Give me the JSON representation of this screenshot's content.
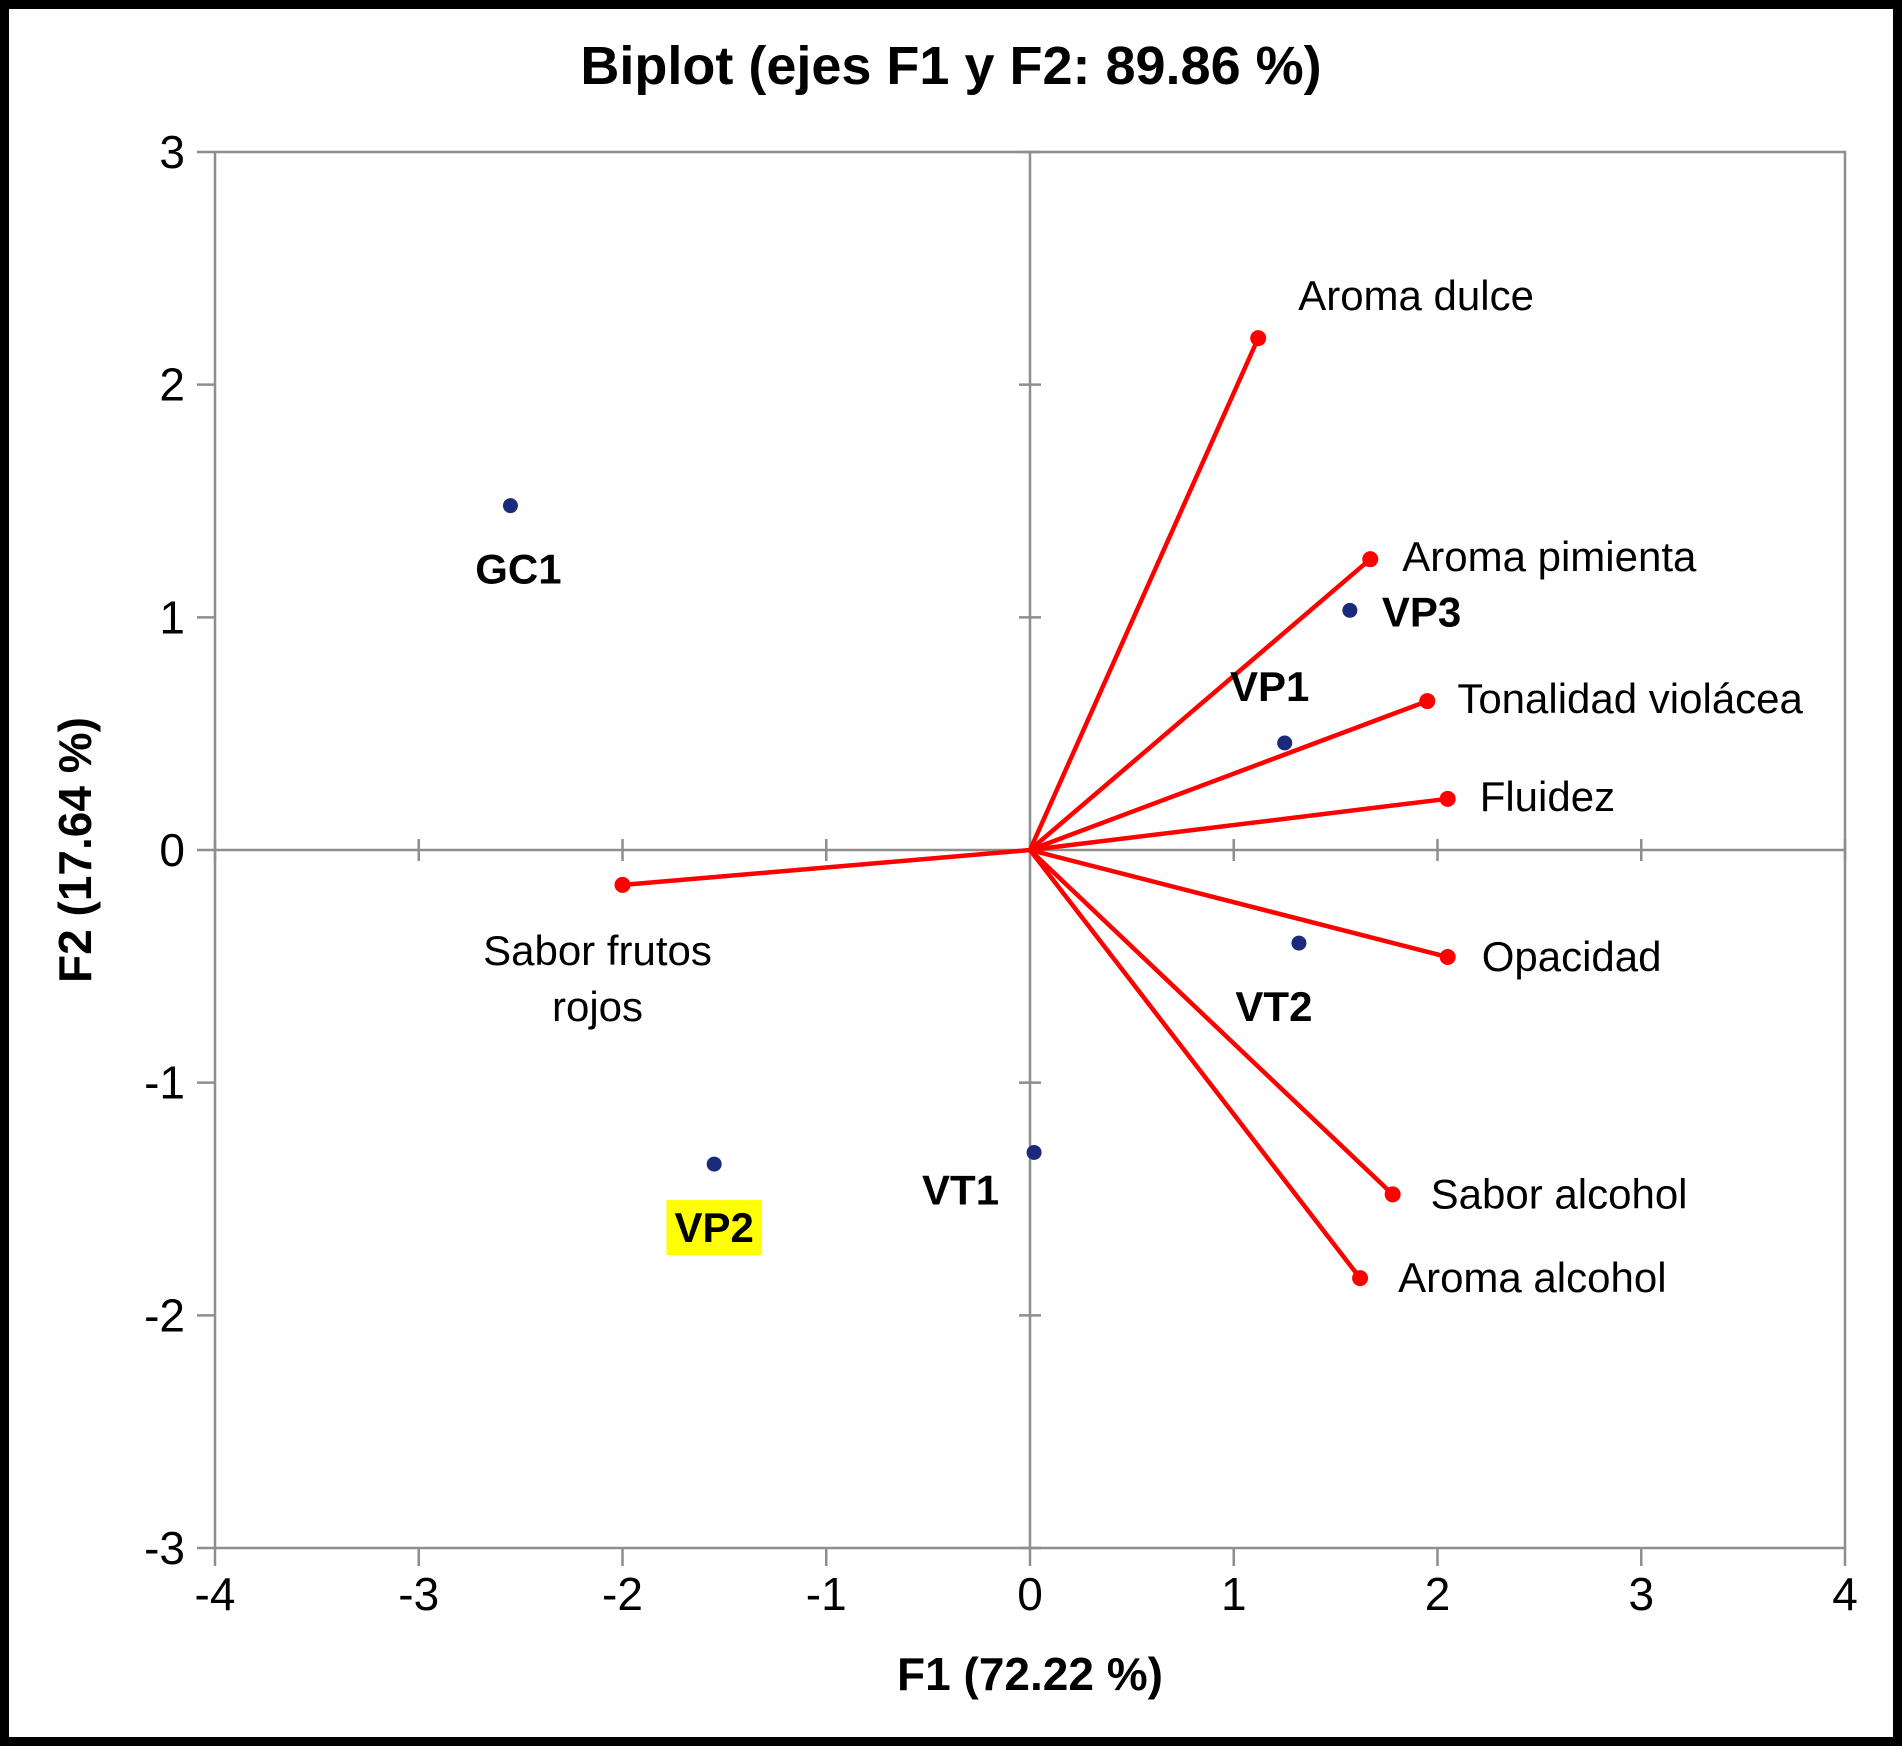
{
  "chart_data": {
    "type": "scatter",
    "title": "Biplot (ejes F1 y F2: 89.86 %)",
    "xlabel": "F1 (72.22 %)",
    "ylabel": "F2 (17.64 %)",
    "xlim": [
      -4,
      4
    ],
    "ylim": [
      -3,
      3
    ],
    "xticks": [
      -4,
      -3,
      -2,
      -1,
      0,
      1,
      2,
      3,
      4
    ],
    "yticks": [
      -3,
      -2,
      -1,
      0,
      1,
      2,
      3
    ],
    "grid": false,
    "legend": false,
    "colors": {
      "observation_point": "#1b2a7b",
      "vector": "#fe0000",
      "highlight": "#ffff00",
      "axis": "#8e8e8e",
      "text": "#000000"
    },
    "observations": [
      {
        "label": "GC1",
        "x": -2.55,
        "y": 1.48,
        "label_dx": 8,
        "label_dy": 78,
        "anchor": "middle",
        "highlight": false
      },
      {
        "label": "VP3",
        "x": 1.57,
        "y": 1.03,
        "label_dx": 32,
        "label_dy": 16,
        "anchor": "start",
        "highlight": false
      },
      {
        "label": "VP1",
        "x": 1.25,
        "y": 0.46,
        "label_dx": -15,
        "label_dy": -42,
        "anchor": "middle",
        "highlight": false
      },
      {
        "label": "VT2",
        "x": 1.32,
        "y": -0.4,
        "label_dx": -25,
        "label_dy": 78,
        "anchor": "middle",
        "highlight": false
      },
      {
        "label": "VT1",
        "x": 0.02,
        "y": -1.3,
        "label_dx": -35,
        "label_dy": 52,
        "anchor": "end",
        "highlight": false
      },
      {
        "label": "VP2",
        "x": -1.55,
        "y": -1.35,
        "label_dx": 0,
        "label_dy": 78,
        "anchor": "middle",
        "highlight": true
      }
    ],
    "vectors": [
      {
        "label": "Aroma dulce",
        "x": 1.12,
        "y": 2.2,
        "label_dx": 40,
        "label_dy": -28,
        "anchor": "start"
      },
      {
        "label": "Aroma pimienta",
        "x": 1.67,
        "y": 1.25,
        "label_dx": 32,
        "label_dy": 12,
        "anchor": "start"
      },
      {
        "label": "Tonalidad violácea",
        "x": 1.95,
        "y": 0.64,
        "label_dx": 30,
        "label_dy": 12,
        "anchor": "start"
      },
      {
        "label": "Fluidez",
        "x": 2.05,
        "y": 0.22,
        "label_dx": 32,
        "label_dy": 12,
        "anchor": "start"
      },
      {
        "label": "Sabor frutos rojos",
        "lines": [
          "Sabor frutos",
          "rojos"
        ],
        "x": -2.0,
        "y": -0.15,
        "label_dx": -25,
        "label_dy": 80,
        "anchor": "middle",
        "line_height": 56
      },
      {
        "label": "Opacidad",
        "x": 2.05,
        "y": -0.46,
        "label_dx": 34,
        "label_dy": 14,
        "anchor": "start"
      },
      {
        "label": "Sabor alcohol",
        "x": 1.78,
        "y": -1.48,
        "label_dx": 38,
        "label_dy": 14,
        "anchor": "start"
      },
      {
        "label": "Aroma alcohol",
        "x": 1.62,
        "y": -1.84,
        "label_dx": 38,
        "label_dy": 14,
        "anchor": "start"
      }
    ]
  }
}
